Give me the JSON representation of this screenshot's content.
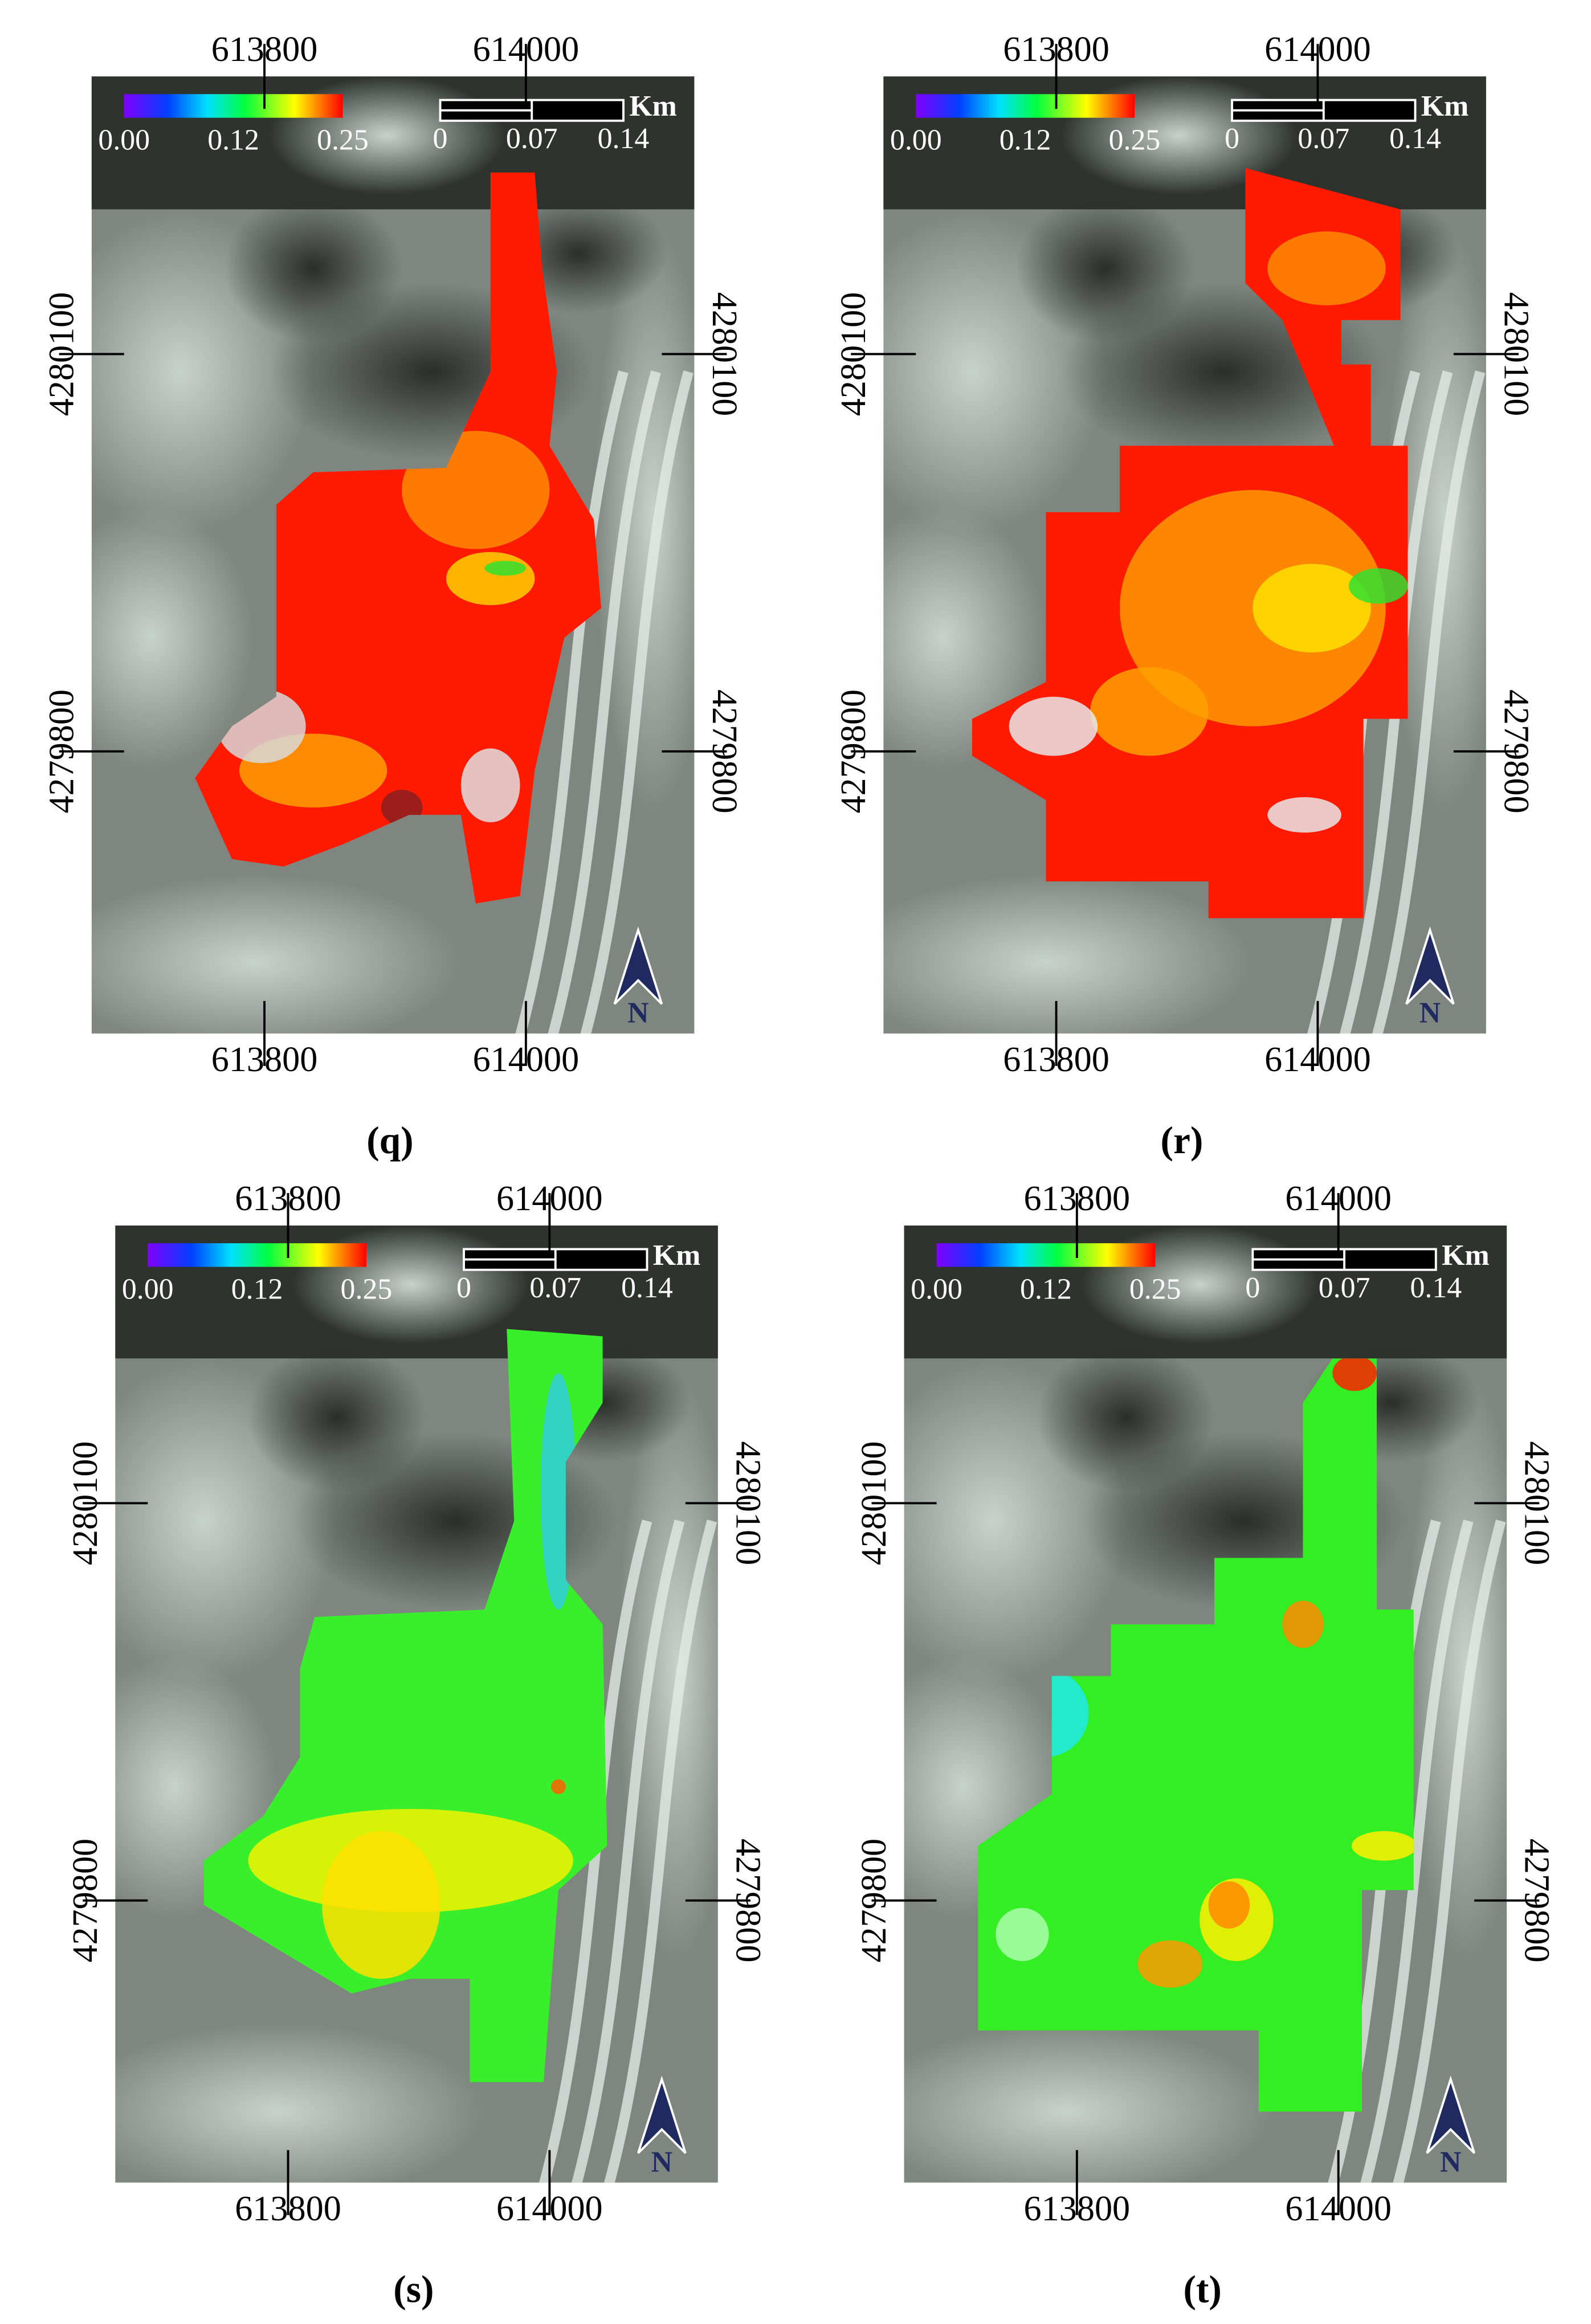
{
  "panels": [
    {
      "label": "(q)",
      "top_ticks": [
        613800,
        614000
      ],
      "bottom_ticks": [
        613800,
        614000
      ],
      "left_ticks": [
        4280100,
        4279800
      ],
      "right_ticks": [
        4280100,
        4279800
      ],
      "colorbar": [
        "0.00",
        "0.12",
        "0.25"
      ],
      "scalebar": [
        "0",
        "0.07",
        "0.14"
      ],
      "unit": "Km",
      "north": "N"
    },
    {
      "label": "(r)",
      "top_ticks": [
        613800,
        614000
      ],
      "bottom_ticks": [
        613800,
        614000
      ],
      "left_ticks": [
        4280100,
        4279800
      ],
      "right_ticks": [
        4280100,
        4279800
      ],
      "colorbar": [
        "0.00",
        "0.12",
        "0.25"
      ],
      "scalebar": [
        "0",
        "0.07",
        "0.14"
      ],
      "unit": "Km",
      "north": "N"
    },
    {
      "label": "(s)",
      "top_ticks": [
        613800,
        614000
      ],
      "bottom_ticks": [
        613800,
        614000
      ],
      "left_ticks": [
        4280100,
        4279800
      ],
      "right_ticks": [
        4280100,
        4279800
      ],
      "colorbar": [
        "0.00",
        "0.12",
        "0.25"
      ],
      "scalebar": [
        "0",
        "0.07",
        "0.14"
      ],
      "unit": "Km",
      "north": "N"
    },
    {
      "label": "(t)",
      "top_ticks": [
        613800,
        614000
      ],
      "bottom_ticks": [
        613800,
        614000
      ],
      "left_ticks": [
        4280100,
        4279800
      ],
      "right_ticks": [
        4280100,
        4279800
      ],
      "colorbar": [
        "0.00",
        "0.12",
        "0.25"
      ],
      "scalebar": [
        "0",
        "0.07",
        "0.14"
      ],
      "unit": "Km",
      "north": "N"
    }
  ]
}
